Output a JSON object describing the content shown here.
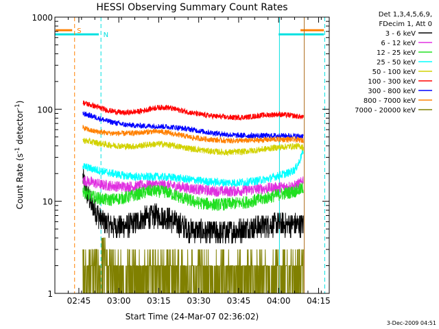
{
  "chart_data": {
    "type": "line",
    "title": "HESSI Observing Summary Count Rates",
    "xlabel": "Start Time (24-Mar-07 02:36:02)",
    "ylabel_main": "Count Rate (s",
    "ylabel_sup1": "-1",
    "ylabel_mid": " detector",
    "ylabel_sup2": "-1",
    "ylabel_end": ")",
    "footer": "3-Dec-2009 04:51",
    "x_range_minutes": [
      0,
      103
    ],
    "y_scale": "log",
    "y_range": [
      1,
      1000
    ],
    "x_ticks": [
      {
        "label": "02:45",
        "min": 9
      },
      {
        "label": "03:00",
        "min": 24
      },
      {
        "label": "03:15",
        "min": 39
      },
      {
        "label": "03:30",
        "min": 54
      },
      {
        "label": "03:45",
        "min": 69
      },
      {
        "label": "04:00",
        "min": 84
      },
      {
        "label": "04:15",
        "min": 99
      }
    ],
    "y_ticks": [
      {
        "label": "1",
        "v": 1
      },
      {
        "label": "10",
        "v": 10
      },
      {
        "label": "100",
        "v": 100
      },
      {
        "label": "1000",
        "v": 1000
      }
    ],
    "legend_header": [
      "Det 1,3,4,5,6,9,",
      "FDecim 1, Att 0"
    ],
    "legend_position": "right",
    "flag_labels": {
      "saa": "S",
      "night": "N"
    },
    "data_interval_min": [
      10.5,
      93.3
    ],
    "series": [
      {
        "name": "3 - 6 keV",
        "color": "#000000",
        "points": [
          [
            10.5,
            18
          ],
          [
            12,
            12
          ],
          [
            15,
            8
          ],
          [
            18,
            6
          ],
          [
            22,
            5.3
          ],
          [
            26,
            5.4
          ],
          [
            30,
            5.8
          ],
          [
            34,
            6.6
          ],
          [
            38,
            7
          ],
          [
            42,
            6.6
          ],
          [
            46,
            5.8
          ],
          [
            50,
            5.0
          ],
          [
            56,
            4.6
          ],
          [
            62,
            4.6
          ],
          [
            68,
            4.8
          ],
          [
            74,
            5.2
          ],
          [
            80,
            5.6
          ],
          [
            86,
            5.6
          ],
          [
            90,
            5.6
          ],
          [
            93.3,
            5.6
          ]
        ],
        "noise": 0.13
      },
      {
        "name": "6 - 12 keV",
        "color": "#e030e0",
        "points": [
          [
            10.5,
            17
          ],
          [
            14,
            16
          ],
          [
            18,
            15
          ],
          [
            24,
            14.5
          ],
          [
            30,
            14.5
          ],
          [
            36,
            15.2
          ],
          [
            42,
            15
          ],
          [
            48,
            14.2
          ],
          [
            54,
            13.4
          ],
          [
            60,
            12.9
          ],
          [
            66,
            12.8
          ],
          [
            72,
            13.2
          ],
          [
            78,
            13.7
          ],
          [
            84,
            14.2
          ],
          [
            90,
            14.7
          ],
          [
            92.5,
            16
          ],
          [
            93.3,
            17.5
          ]
        ],
        "noise": 0.06
      },
      {
        "name": "12 - 25 keV",
        "color": "#20e020",
        "points": [
          [
            10.5,
            13
          ],
          [
            14,
            11.2
          ],
          [
            20,
            10.3
          ],
          [
            26,
            10.9
          ],
          [
            32,
            12.1
          ],
          [
            36,
            13
          ],
          [
            42,
            12.6
          ],
          [
            48,
            10.8
          ],
          [
            54,
            9.6
          ],
          [
            60,
            9.2
          ],
          [
            66,
            9.4
          ],
          [
            72,
            9.8
          ],
          [
            78,
            10.6
          ],
          [
            84,
            11.8
          ],
          [
            90,
            12.8
          ],
          [
            92.5,
            13.5
          ],
          [
            93.3,
            14.2
          ]
        ],
        "noise": 0.07
      },
      {
        "name": "25 - 50 keV",
        "color": "#00ffff",
        "points": [
          [
            10.5,
            24
          ],
          [
            14,
            22.5
          ],
          [
            20,
            20.5
          ],
          [
            26,
            19
          ],
          [
            32,
            18.3
          ],
          [
            38,
            18.5
          ],
          [
            44,
            18.2
          ],
          [
            50,
            17.3
          ],
          [
            56,
            16.5
          ],
          [
            62,
            16
          ],
          [
            68,
            15.9
          ],
          [
            74,
            16.4
          ],
          [
            80,
            17.5
          ],
          [
            84,
            19
          ],
          [
            88,
            20.5
          ],
          [
            90,
            22
          ],
          [
            91.5,
            26
          ],
          [
            92.5,
            31
          ],
          [
            93.3,
            36
          ]
        ],
        "noise": 0.045
      },
      {
        "name": "50 - 100 keV",
        "color": "#d2d200",
        "points": [
          [
            10.5,
            46
          ],
          [
            14,
            44
          ],
          [
            20,
            41
          ],
          [
            26,
            39.5
          ],
          [
            30,
            39.5
          ],
          [
            36,
            41.5
          ],
          [
            40,
            42
          ],
          [
            46,
            39.5
          ],
          [
            52,
            37
          ],
          [
            58,
            35
          ],
          [
            64,
            34
          ],
          [
            70,
            34.5
          ],
          [
            76,
            36
          ],
          [
            82,
            38
          ],
          [
            88,
            39.5
          ],
          [
            92.5,
            39.5
          ],
          [
            93.3,
            38
          ]
        ],
        "noise": 0.035
      },
      {
        "name": "100 - 300 keV",
        "color": "#ff0000",
        "points": [
          [
            10.5,
            118
          ],
          [
            14,
            110
          ],
          [
            20,
            97
          ],
          [
            26,
            91
          ],
          [
            32,
            95
          ],
          [
            38,
            104
          ],
          [
            42,
            105
          ],
          [
            48,
            96
          ],
          [
            54,
            88
          ],
          [
            60,
            84
          ],
          [
            66,
            81
          ],
          [
            72,
            82
          ],
          [
            78,
            86
          ],
          [
            84,
            88
          ],
          [
            88,
            86
          ],
          [
            92,
            83
          ],
          [
            93.3,
            81
          ]
        ],
        "noise": 0.03
      },
      {
        "name": "300 - 800 keV",
        "color": "#0000ff",
        "points": [
          [
            10.5,
            90
          ],
          [
            14,
            84
          ],
          [
            20,
            74
          ],
          [
            26,
            68
          ],
          [
            32,
            66
          ],
          [
            38,
            65.5
          ],
          [
            44,
            64
          ],
          [
            50,
            61
          ],
          [
            56,
            57
          ],
          [
            62,
            54
          ],
          [
            68,
            52
          ],
          [
            74,
            51.5
          ],
          [
            80,
            51.5
          ],
          [
            86,
            51.5
          ],
          [
            93.3,
            51
          ]
        ],
        "noise": 0.03
      },
      {
        "name": "800 - 7000 keV",
        "color": "#ff8000",
        "points": [
          [
            10.5,
            63
          ],
          [
            14,
            58
          ],
          [
            20,
            55
          ],
          [
            26,
            54.5
          ],
          [
            30,
            55
          ],
          [
            36,
            57
          ],
          [
            40,
            57
          ],
          [
            46,
            53
          ],
          [
            52,
            49
          ],
          [
            58,
            47
          ],
          [
            64,
            45.5
          ],
          [
            70,
            45.5
          ],
          [
            76,
            46
          ],
          [
            82,
            47
          ],
          [
            88,
            47
          ],
          [
            93.3,
            46
          ]
        ],
        "noise": 0.03
      },
      {
        "name": "7000 - 20000 keV",
        "color": "#808000",
        "points": [
          [
            10.5,
            2
          ],
          [
            93.3,
            2
          ]
        ],
        "noise": 0
      }
    ]
  }
}
